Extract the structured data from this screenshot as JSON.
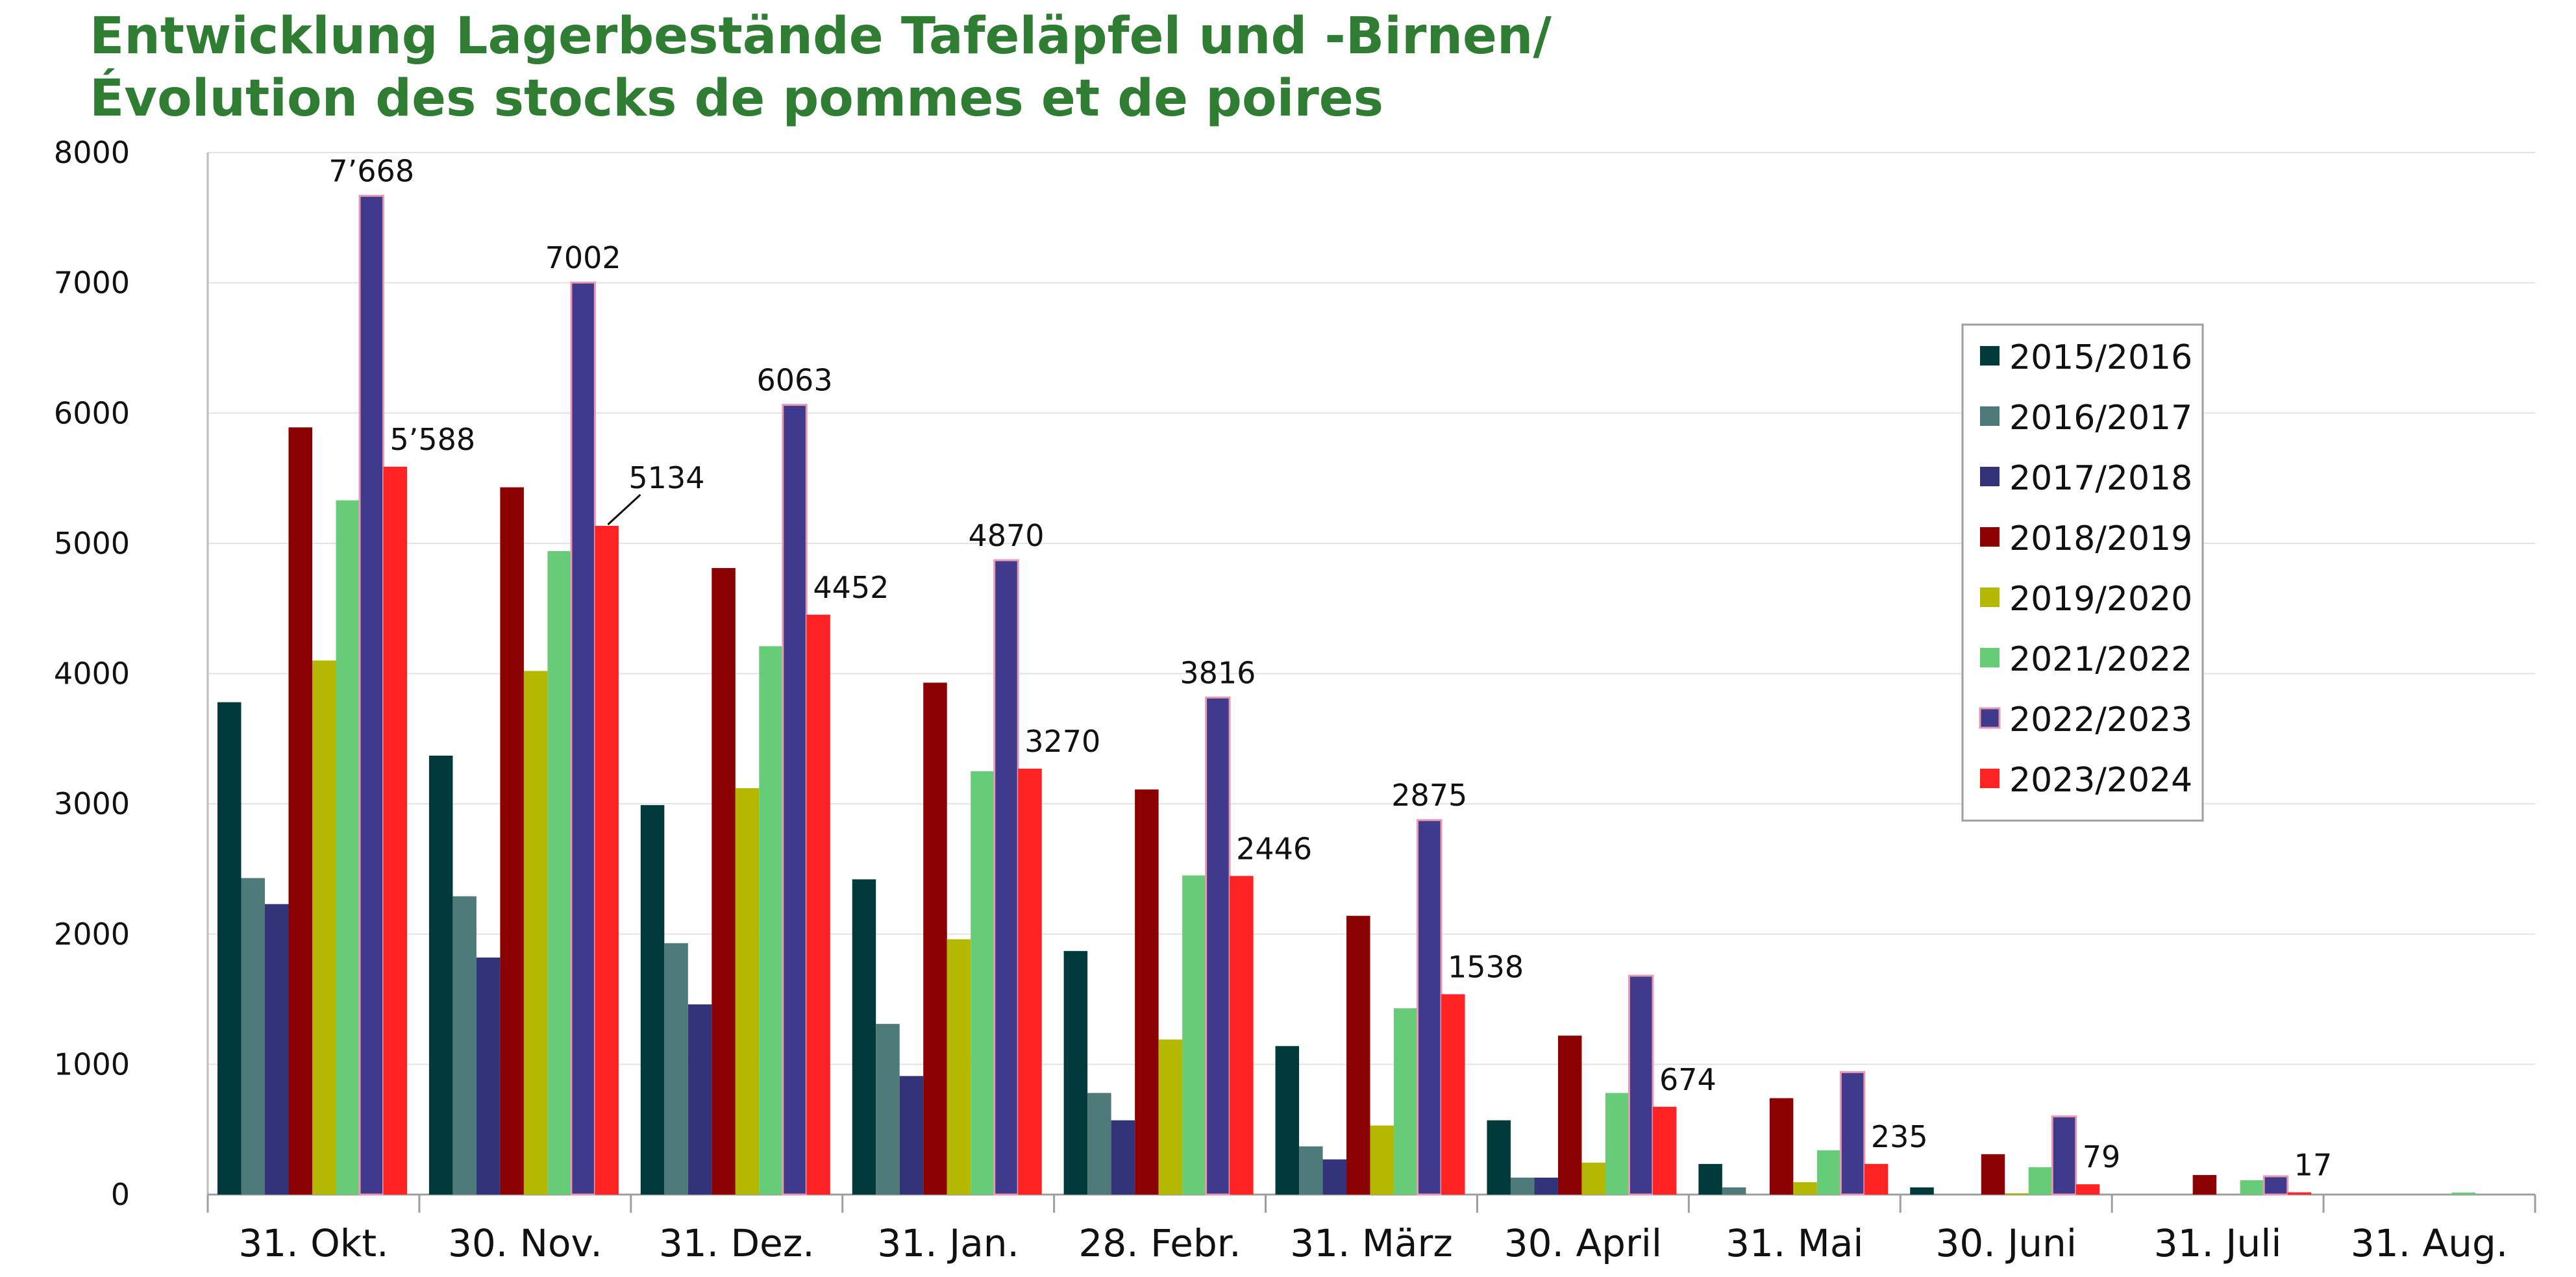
{
  "chart_data": {
    "type": "bar",
    "title": "Entwicklung Lagerbestände Tafeläpfel und -Birnen/",
    "subtitle": "Évolution des stocks de pommes et de poires",
    "ylim": [
      0,
      8000
    ],
    "yticks": [
      "0",
      "1000",
      "2000",
      "3000",
      "4000",
      "5000",
      "6000",
      "7000",
      "8000"
    ],
    "grid": true,
    "legend_position": "right",
    "categories": [
      "31. Okt.",
      "30. Nov.",
      "31. Dez.",
      "31. Jan.",
      "28. Febr.",
      "31. März",
      "30. April",
      "31. Mai",
      "30. Juni",
      "31. Juli",
      "31. Aug."
    ],
    "series": [
      {
        "name": "2015/2016",
        "color": "#003a3a",
        "values": [
          3780,
          3370,
          2990,
          2420,
          1870,
          1140,
          570,
          235,
          55,
          0,
          0
        ]
      },
      {
        "name": "2016/2017",
        "color": "#4f7a7a",
        "values": [
          2430,
          2290,
          1930,
          1310,
          780,
          370,
          130,
          55,
          0,
          0,
          0
        ]
      },
      {
        "name": "2017/2018",
        "color": "#33337a",
        "values": [
          2230,
          1820,
          1460,
          910,
          570,
          270,
          130,
          0,
          0,
          0,
          0
        ]
      },
      {
        "name": "2018/2019",
        "color": "#8b0000",
        "values": [
          5890,
          5430,
          4810,
          3930,
          3110,
          2140,
          1220,
          740,
          310,
          150,
          0
        ]
      },
      {
        "name": "2019/2020",
        "color": "#b5b800",
        "values": [
          4100,
          4020,
          3120,
          1960,
          1190,
          530,
          245,
          95,
          10,
          0,
          0
        ]
      },
      {
        "name": "2021/2022",
        "color": "#66cc77",
        "values": [
          5330,
          4940,
          4210,
          3250,
          2450,
          1430,
          780,
          340,
          210,
          110,
          15
        ]
      },
      {
        "name": "2022/2023",
        "color": "#3f3a8c",
        "values": [
          7668,
          7002,
          6063,
          4870,
          3816,
          2875,
          1680,
          940,
          600,
          140,
          0
        ]
      },
      {
        "name": "2023/2024",
        "color": "#ff2222",
        "values": [
          5588,
          5134,
          4452,
          3270,
          2446,
          1538,
          674,
          235,
          79,
          17,
          0
        ]
      }
    ],
    "annotations": [
      {
        "series": "2022/2023",
        "category_index": 0,
        "text": "7’668"
      },
      {
        "series": "2022/2023",
        "category_index": 1,
        "text": "7002"
      },
      {
        "series": "2022/2023",
        "category_index": 2,
        "text": "6063"
      },
      {
        "series": "2022/2023",
        "category_index": 3,
        "text": "4870"
      },
      {
        "series": "2022/2023",
        "category_index": 4,
        "text": "3816"
      },
      {
        "series": "2022/2023",
        "category_index": 5,
        "text": "2875"
      },
      {
        "series": "2023/2024",
        "category_index": 0,
        "text": "5’588"
      },
      {
        "series": "2023/2024",
        "category_index": 1,
        "text": "5134"
      },
      {
        "series": "2023/2024",
        "category_index": 2,
        "text": "4452"
      },
      {
        "series": "2023/2024",
        "category_index": 3,
        "text": "3270"
      },
      {
        "series": "2023/2024",
        "category_index": 4,
        "text": "2446"
      },
      {
        "series": "2023/2024",
        "category_index": 5,
        "text": "1538"
      },
      {
        "series": "2023/2024",
        "category_index": 6,
        "text": "674"
      },
      {
        "series": "2023/2024",
        "category_index": 7,
        "text": "235"
      },
      {
        "series": "2023/2024",
        "category_index": 8,
        "text": "79"
      },
      {
        "series": "2023/2024",
        "category_index": 9,
        "text": "17"
      }
    ]
  }
}
